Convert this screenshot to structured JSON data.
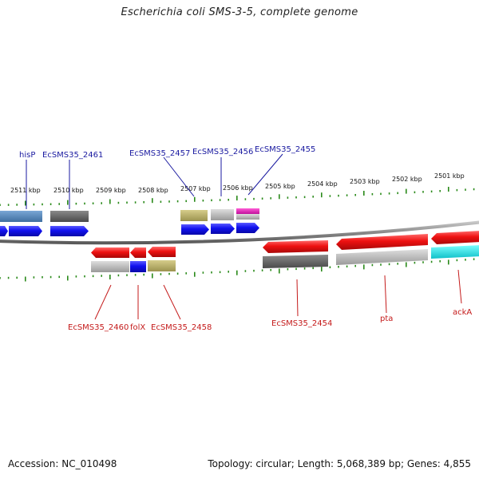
{
  "title": "Escherichia coli SMS-3-5, complete genome",
  "footer": {
    "accession": "Accession: NC_010498",
    "summary": "Topology: circular; Length: 5,068,389 bp; Genes: 4,855"
  },
  "scale_labels": [
    "2511 kbp",
    "2510 kbp",
    "2509 kbp",
    "2508 kbp",
    "2507 kbp",
    "2506 kbp",
    "2505 kbp",
    "2504 kbp",
    "2503 kbp",
    "2502 kbp",
    "2501 kbp"
  ],
  "forward_labels": [
    "hisP",
    "EcSMS35_2461",
    "EcSMS35_2457",
    "EcSMS35_2456",
    "EcSMS35_2455"
  ],
  "reverse_labels": [
    "EcSMS35_2460",
    "folX",
    "EcSMS35_2458",
    "EcSMS35_2454",
    "pta",
    "ackA"
  ],
  "colors": {
    "forward_gene": "#1111ee",
    "reverse_gene": "#ee1111",
    "forward_label": "#1a1aa0",
    "reverse_label": "#c41a1a",
    "tick": "#2a8a1a",
    "backbone": "#888888"
  }
}
